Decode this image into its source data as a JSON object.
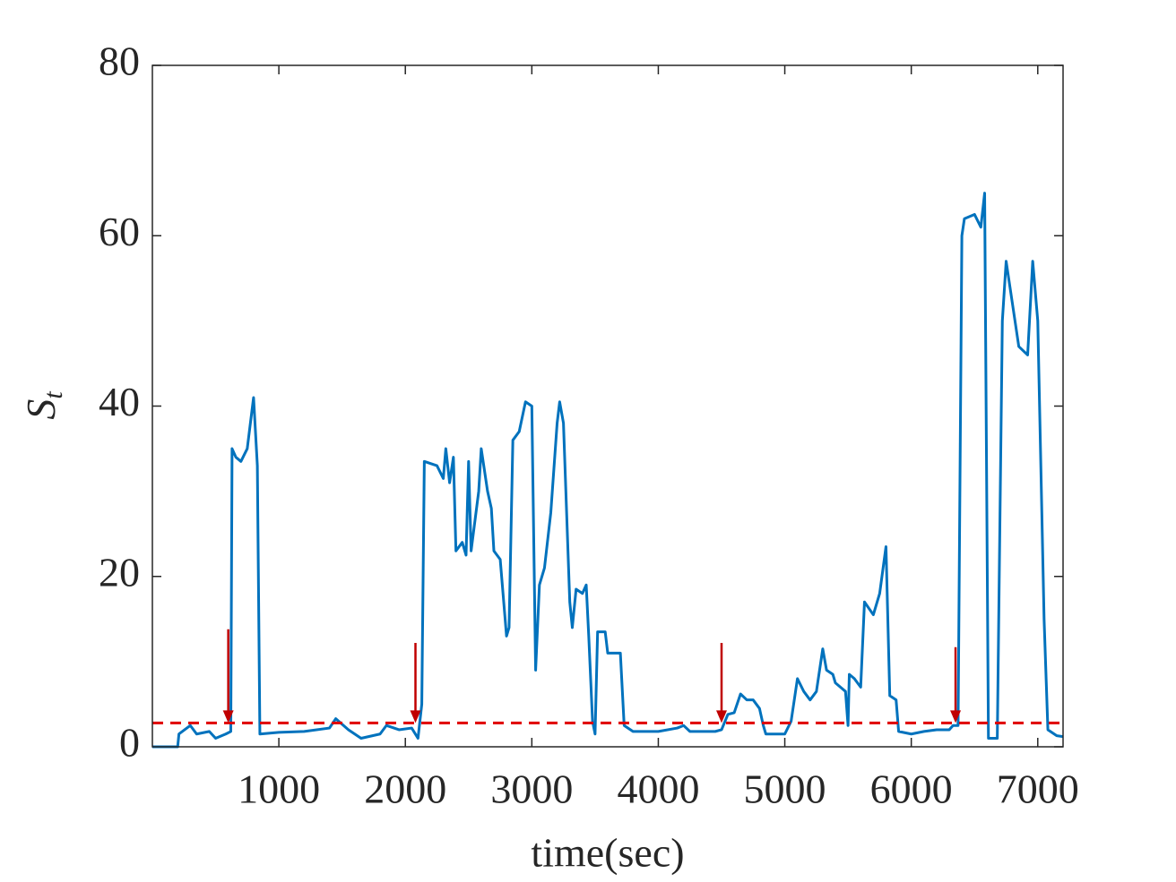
{
  "chart_data": {
    "type": "line",
    "xlabel": "time(sec)",
    "ylabel": "S",
    "ylabel_sub": "t",
    "xlim": [
      0,
      7200
    ],
    "xticks": [
      1000,
      2000,
      3000,
      4000,
      5000,
      6000,
      7000
    ],
    "ylim": [
      0,
      80
    ],
    "yticks": [
      0,
      20,
      40,
      60,
      80
    ],
    "grid": false,
    "box": true,
    "series": [
      {
        "color": "#0072bd",
        "x": [
          0,
          200,
          210,
          300,
          350,
          450,
          500,
          580,
          620,
          630,
          660,
          700,
          750,
          800,
          830,
          850,
          1000,
          1200,
          1400,
          1450,
          1550,
          1650,
          1800,
          1850,
          1950,
          2050,
          2100,
          2130,
          2150,
          2250,
          2300,
          2320,
          2350,
          2380,
          2400,
          2450,
          2480,
          2500,
          2520,
          2580,
          2600,
          2650,
          2680,
          2700,
          2750,
          2800,
          2820,
          2850,
          2900,
          2950,
          3000,
          3030,
          3060,
          3100,
          3150,
          3200,
          3220,
          3250,
          3300,
          3320,
          3350,
          3400,
          3430,
          3450,
          3480,
          3500,
          3520,
          3580,
          3600,
          3700,
          3730,
          3800,
          4000,
          4150,
          4200,
          4250,
          4450,
          4500,
          4550,
          4600,
          4650,
          4700,
          4750,
          4800,
          4830,
          4850,
          5000,
          5050,
          5100,
          5150,
          5200,
          5250,
          5300,
          5330,
          5380,
          5400,
          5480,
          5500,
          5510,
          5550,
          5600,
          5630,
          5700,
          5750,
          5800,
          5830,
          5880,
          5900,
          6000,
          6100,
          6200,
          6300,
          6330,
          6370,
          6400,
          6420,
          6500,
          6550,
          6580,
          6610,
          6680,
          6720,
          6750,
          6780,
          6850,
          6920,
          6960,
          7000,
          7050,
          7080,
          7150,
          7200
        ],
        "values": [
          0,
          0,
          1.5,
          2.5,
          1.5,
          1.8,
          1,
          1.5,
          1.8,
          35,
          34,
          33.5,
          35,
          41,
          33,
          1.5,
          1.7,
          1.8,
          2.2,
          3.3,
          2,
          1,
          1.5,
          2.5,
          2,
          2.2,
          1,
          5,
          33.5,
          33,
          31.5,
          35,
          31,
          34,
          23,
          24,
          22.5,
          33.5,
          23,
          30,
          35,
          30,
          28,
          23,
          22,
          13,
          14,
          36,
          37,
          40.5,
          40,
          9,
          19,
          21,
          27.5,
          38,
          40.5,
          38,
          17,
          14,
          18.5,
          18,
          19,
          13,
          3,
          1.5,
          13.5,
          13.5,
          11,
          11,
          2.5,
          1.8,
          1.8,
          2.2,
          2.5,
          1.8,
          1.8,
          2,
          3.8,
          4,
          6.2,
          5.5,
          5.5,
          4.5,
          2.5,
          1.5,
          1.5,
          3,
          8,
          6.5,
          5.5,
          6.5,
          11.5,
          9,
          8.5,
          7.5,
          6.5,
          2.5,
          8.5,
          8,
          7,
          17,
          15.5,
          18,
          23.5,
          6,
          5.5,
          1.8,
          1.5,
          1.8,
          2,
          2,
          2.5,
          2.5,
          60,
          62,
          62.5,
          61,
          65,
          1,
          1,
          50,
          57,
          54,
          47,
          46,
          57,
          50,
          15,
          2,
          1.3,
          1.2
        ]
      }
    ],
    "threshold": {
      "value": 2.8,
      "color": "#e00000"
    },
    "arrows": {
      "color": "#c00000",
      "x": [
        600,
        2080,
        4500,
        6350
      ],
      "y_start": [
        13.8,
        12.2,
        12.2,
        11.7
      ],
      "y_end": [
        2.8,
        2.8,
        2.8,
        2.8
      ]
    }
  }
}
